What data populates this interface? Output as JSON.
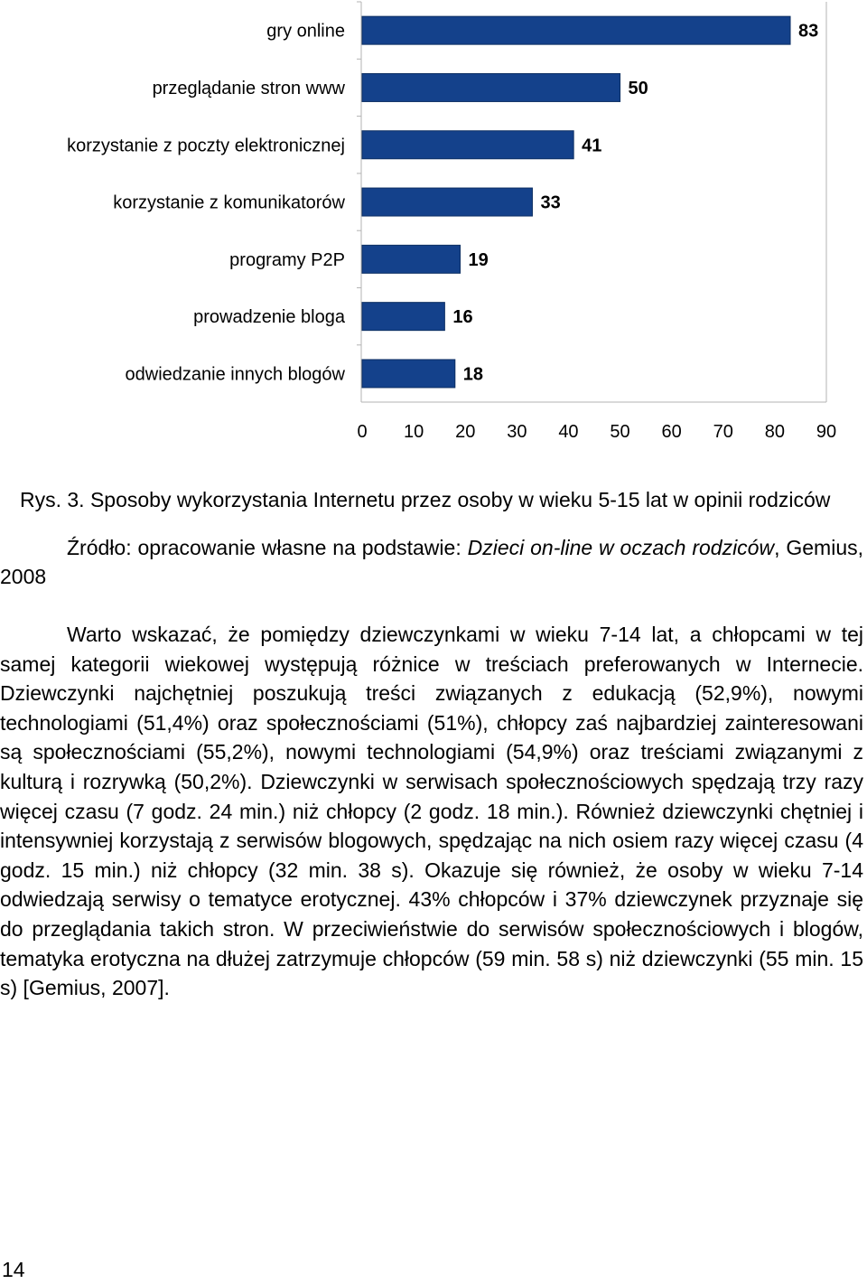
{
  "chart_data": {
    "type": "bar",
    "orientation": "horizontal",
    "categories": [
      "gry online",
      "przeglądanie stron www",
      "korzystanie z poczty elektronicznej",
      "korzystanie z komunikatorów",
      "programy P2P",
      "prowadzenie bloga",
      "odwiedzanie innych blogów"
    ],
    "values": [
      83,
      50,
      41,
      33,
      19,
      16,
      18
    ],
    "xlim": [
      0,
      90
    ],
    "xticks": [
      "0",
      "10",
      "20",
      "30",
      "40",
      "50",
      "60",
      "70",
      "80",
      "90"
    ],
    "grid": false,
    "bar_color": "#14418b"
  },
  "caption": "Rys. 3. Sposoby wykorzystania Internetu przez osoby w wieku 5-15 lat w opinii rodziców",
  "source": {
    "prefix": "Źródło: opracowanie własne na podstawie: ",
    "title": "Dzieci on-line w oczach rodziców",
    "suffix": ", Gemius, 2008"
  },
  "body_paragraph": "Warto wskazać, że pomiędzy dziewczynkami w wieku 7-14 lat, a chłopcami w tej samej kategorii wiekowej występują różnice w treściach preferowanych w Internecie. Dziewczynki najchętniej poszukują treści związanych z edukacją (52,9%), nowymi technologiami (51,4%) oraz społecznościami (51%), chłopcy zaś najbardziej zainteresowani są społecznościami (55,2%), nowymi technologiami (54,9%) oraz treściami związanymi z kulturą i rozrywką (50,2%). Dziewczynki w serwisach społecznościowych spędzają trzy razy więcej czasu (7 godz. 24 min.) niż chłopcy (2 godz. 18 min.). Również dziewczynki chętniej i intensywniej korzystają z serwisów blogowych, spędzając na nich osiem razy więcej czasu (4 godz. 15 min.) niż chłopcy (32 min. 38 s). Okazuje się również, że osoby w wieku 7-14 odwiedzają serwisy o tematyce erotycznej. 43% chłopców i 37% dziewczynek przyznaje się do przeglądania takich stron. W przeciwieństwie do serwisów społecznościowych i blogów, tematyka erotyczna na dłużej zatrzymuje chłopców (59 min. 58 s) niż dziewczynki (55 min. 15 s) [Gemius, 2007].",
  "page_number": "14"
}
